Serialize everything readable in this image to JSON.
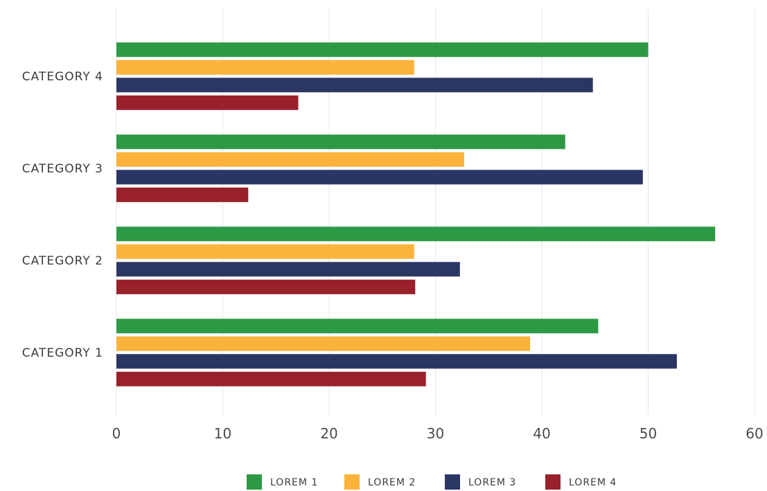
{
  "chart_data": {
    "type": "bar",
    "orientation": "horizontal",
    "categories": [
      "CATEGORY 1",
      "CATEGORY 2",
      "CATEGORY 3",
      "CATEGORY 4"
    ],
    "series": [
      {
        "name": "LOREM 1",
        "color": "#2e9944",
        "values": [
          45.3,
          56.3,
          42.2,
          50.0
        ]
      },
      {
        "name": "LOREM 2",
        "color": "#fbb33c",
        "values": [
          38.9,
          28.0,
          32.7,
          28.0
        ]
      },
      {
        "name": "LOREM 3",
        "color": "#2c3665",
        "values": [
          52.7,
          32.3,
          49.5,
          44.8
        ]
      },
      {
        "name": "LOREM 4",
        "color": "#99212c",
        "values": [
          29.1,
          28.1,
          12.4,
          17.1
        ]
      }
    ],
    "xlim": [
      0,
      60
    ],
    "xticks": [
      "0",
      "10",
      "20",
      "30",
      "40",
      "50",
      "60"
    ],
    "grid": "vertical",
    "legend": "bottom-center",
    "title": "",
    "xlabel": "",
    "ylabel": ""
  }
}
